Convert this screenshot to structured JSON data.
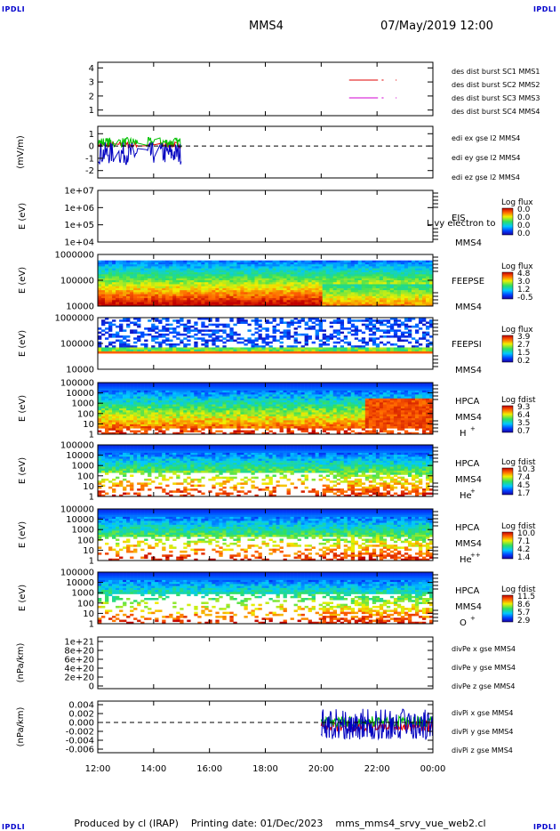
{
  "corners": {
    "tl": "IPDLI",
    "tr": "IPDLI",
    "bl": "IPDLI",
    "br": "IPDLI"
  },
  "header": {
    "mission": "MMS4",
    "datetime": "07/May/2019 12:00"
  },
  "footer": {
    "produced_by": "Produced by cl (IRAP)",
    "printing_date": "Printing date: 01/Dec/2023",
    "filename": "mms_mms4_srvy_vue_web2.cl"
  },
  "x_axis": {
    "ticks": [
      "12:00",
      "14:00",
      "16:00",
      "18:00",
      "20:00",
      "22:00",
      "00:00"
    ]
  },
  "colors": {
    "mms1": "#00c000",
    "mms2": "#e00000",
    "mms3": "#d000d0",
    "mms4": "#0000e0",
    "ex": "#e00000",
    "ey": "#00c000",
    "ez": "#0000c0"
  },
  "chart_data": [
    {
      "type": "line",
      "panel": "des-dist-burst",
      "yticks": [
        "1",
        "2",
        "3",
        "4"
      ],
      "ylim": [
        1,
        4
      ],
      "legend": [
        "des dist burst SC1 MMS1",
        "des dist burst SC2 MMS2",
        "des dist burst SC3 MMS3",
        "des dist burst SC4 MMS4"
      ],
      "series": [
        {
          "name": "des dist burst SC1 MMS1",
          "value": 4,
          "segments": [
            [
              "21:00",
              "22:02"
            ],
            [
              "22:10",
              "22:14"
            ],
            [
              "22:40",
              "22:42"
            ]
          ]
        },
        {
          "name": "des dist burst SC2 MMS2",
          "value": 3,
          "segments": [
            [
              "21:00",
              "22:02"
            ],
            [
              "22:10",
              "22:14"
            ],
            [
              "22:40",
              "22:42"
            ]
          ]
        },
        {
          "name": "des dist burst SC3 MMS3",
          "value": 2,
          "segments": [
            [
              "21:00",
              "22:02"
            ],
            [
              "22:10",
              "22:14"
            ],
            [
              "22:40",
              "22:42"
            ]
          ]
        },
        {
          "name": "des dist burst SC4 MMS4",
          "value": 1,
          "segments": [
            [
              "21:00",
              "22:02"
            ],
            [
              "22:10",
              "22:14"
            ],
            [
              "22:40",
              "22:42"
            ]
          ]
        }
      ]
    },
    {
      "type": "line",
      "panel": "edi-e",
      "ylabel": "(mV/m)",
      "yticks": [
        "1",
        "0",
        "-1",
        "-2"
      ],
      "ylim": [
        -2.6,
        1.6
      ],
      "legend": [
        "edi ex gse l2 MMS4",
        "edi ey gse l2 MMS4",
        "edi ez gse l2 MMS4"
      ],
      "series": [
        {
          "name": "edi ex gse l2 MMS4",
          "range": [
            "12:00",
            "15:00"
          ],
          "mean": 0.1,
          "amp": 0.25
        },
        {
          "name": "edi ey gse l2 MMS4",
          "range": [
            "12:00",
            "15:00"
          ],
          "mean": 0.3,
          "amp": 0.4
        },
        {
          "name": "edi ez gse l2 MMS4",
          "range": [
            "12:00",
            "15:00"
          ],
          "mean": -0.6,
          "amp": 0.9
        }
      ],
      "dashed_zero": true
    },
    {
      "type": "heatmap",
      "panel": "EIS",
      "ylabel": "E (eV)",
      "yticks": [
        "1e+07",
        "1e+06",
        "1e+05",
        "1e+04"
      ],
      "instrument": "EIS",
      "spacecraft": "MMS4",
      "overlay_text": "Livy electron to",
      "colorbar": {
        "title": "Log flux",
        "ticks": [
          "0.0",
          "0.0",
          "0.0",
          "0.0"
        ]
      },
      "empty": true
    },
    {
      "type": "heatmap",
      "panel": "FEEPSE",
      "ylabel": "E (eV)",
      "yticks": [
        "1000000",
        "100000",
        "10000"
      ],
      "instrument": "FEEPSE",
      "spacecraft": "MMS4",
      "colorbar": {
        "title": "Log flux",
        "ticks": [
          "4.8",
          "3.0",
          "1.2",
          "-0.5"
        ]
      }
    },
    {
      "type": "heatmap",
      "panel": "FEEPSI",
      "ylabel": "E (eV)",
      "yticks": [
        "1000000",
        "100000",
        "10000"
      ],
      "instrument": "FEEPSI",
      "spacecraft": "MMS4",
      "colorbar": {
        "title": "Log flux",
        "ticks": [
          "3.9",
          "2.7",
          "1.5",
          "0.2"
        ]
      }
    },
    {
      "type": "heatmap",
      "panel": "HPCA-H",
      "ylabel": "E (eV)",
      "yticks": [
        "100000",
        "10000",
        "1000",
        "100",
        "10",
        "1"
      ],
      "instrument": "HPCA",
      "spacecraft": "MMS4",
      "species": "H",
      "charge": "+",
      "colorbar": {
        "title": "Log fdist",
        "ticks": [
          "9.3",
          "6.4",
          "3.5",
          "0.7"
        ]
      }
    },
    {
      "type": "heatmap",
      "panel": "HPCA-He+",
      "ylabel": "E (eV)",
      "yticks": [
        "100000",
        "10000",
        "1000",
        "100",
        "10",
        "1"
      ],
      "instrument": "HPCA",
      "spacecraft": "MMS4",
      "species": "He",
      "charge": "+",
      "colorbar": {
        "title": "Log fdist",
        "ticks": [
          "10.3",
          "7.4",
          "4.5",
          "1.7"
        ]
      }
    },
    {
      "type": "heatmap",
      "panel": "HPCA-He++",
      "ylabel": "E (eV)",
      "yticks": [
        "100000",
        "10000",
        "1000",
        "100",
        "10",
        "1"
      ],
      "instrument": "HPCA",
      "spacecraft": "MMS4",
      "species": "He",
      "charge": "++",
      "colorbar": {
        "title": "Log fdist",
        "ticks": [
          "10.0",
          "7.1",
          "4.2",
          "1.4"
        ]
      }
    },
    {
      "type": "heatmap",
      "panel": "HPCA-O+",
      "ylabel": "E (eV)",
      "yticks": [
        "100000",
        "10000",
        "1000",
        "100",
        "10",
        "1"
      ],
      "instrument": "HPCA",
      "spacecraft": "MMS4",
      "species": "O",
      "charge": "+",
      "colorbar": {
        "title": "Log fdist",
        "ticks": [
          "11.5",
          "8.6",
          "5.7",
          "2.9"
        ]
      }
    },
    {
      "type": "line",
      "panel": "divPe",
      "ylabel": "(nPa/km)",
      "yticks": [
        "1e+21",
        "8e+20",
        "6e+20",
        "4e+20",
        "2e+20",
        "0"
      ],
      "ylim": [
        0,
        1e+21
      ],
      "legend": [
        "divPe x gse MMS4",
        "divPe y gse MMS4",
        "divPe z gse MMS4"
      ],
      "series": [],
      "dashed_zero": true
    },
    {
      "type": "line",
      "panel": "divPi",
      "ylabel": "(nPa/km)",
      "yticks": [
        "0.004",
        "0.002",
        "0.000",
        "-0.002",
        "-0.004",
        "-0.006"
      ],
      "ylim": [
        -0.0068,
        0.0048
      ],
      "legend": [
        "divPi x gse MMS4",
        "divPi y gse MMS4",
        "divPi z gse MMS4"
      ],
      "series": [
        {
          "name": "divPi x gse MMS4",
          "range": [
            "20:00",
            "00:00"
          ],
          "mean": -0.0008,
          "amp": 0.0012
        },
        {
          "name": "divPi y gse MMS4",
          "range": [
            "20:00",
            "00:00"
          ],
          "mean": 0.0002,
          "amp": 0.0012
        },
        {
          "name": "divPi z gse MMS4",
          "range": [
            "20:00",
            "00:00"
          ],
          "mean": -0.0004,
          "amp": 0.0035
        }
      ],
      "dashed_zero": true
    }
  ]
}
